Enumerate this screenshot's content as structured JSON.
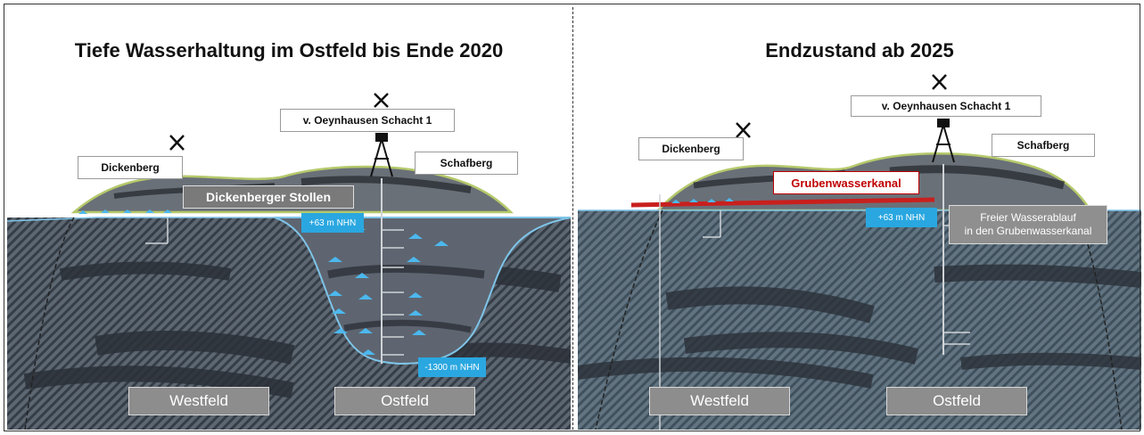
{
  "left": {
    "title": "Tiefe Wasserhaltung im Ostfeld bis Ende 2020",
    "labels": {
      "dickenberg": "Dickenberg",
      "schacht": "v. Oeynhausen Schacht 1",
      "schafberg": "Schafberg",
      "stollen": "Dickenberger Stollen",
      "level_top": "+63 m NHN",
      "level_bottom": "-1300 m NHN",
      "westfeld": "Westfeld",
      "ostfeld": "Ostfeld"
    }
  },
  "right": {
    "title": "Endzustand ab 2025",
    "labels": {
      "dickenberg": "Dickenberg",
      "schacht": "v. Oeynhausen Schacht 1",
      "schafberg": "Schafberg",
      "kanal": "Grubenwasserkanal",
      "level_top": "+63 m NHN",
      "note_line1": "Freier Wasserablauf",
      "note_line2": "in den Grubenwasserkanal",
      "westfeld": "Westfeld",
      "ostfeld": "Ostfeld"
    }
  },
  "colors": {
    "rock": "#56606b",
    "hatch": "#2e3640",
    "water_line": "#7ec4e8",
    "hill_edge": "#b5c96a",
    "triangle": "#4cb8ee",
    "kanal_red": "#c8201e"
  }
}
